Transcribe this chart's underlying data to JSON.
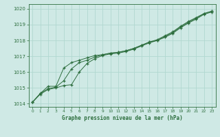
{
  "title": "Graphe pression niveau de la mer (hPa)",
  "background_color": "#cfe9e5",
  "grid_color": "#b0d8d0",
  "line_color": "#2d6e3e",
  "xlim": [
    -0.5,
    23.5
  ],
  "ylim": [
    1013.8,
    1020.3
  ],
  "yticks": [
    1014,
    1015,
    1016,
    1017,
    1018,
    1019,
    1020
  ],
  "xticks": [
    0,
    1,
    2,
    3,
    4,
    5,
    6,
    7,
    8,
    9,
    10,
    11,
    12,
    13,
    14,
    15,
    16,
    17,
    18,
    19,
    20,
    21,
    22,
    23
  ],
  "series1_x": [
    0,
    1,
    2,
    3,
    4,
    5,
    6,
    7,
    8,
    9,
    10,
    11,
    12,
    13,
    14,
    15,
    16,
    17,
    18,
    19,
    20,
    21,
    22,
    23
  ],
  "series1_y": [
    1014.1,
    1014.6,
    1014.9,
    1015.0,
    1015.15,
    1015.2,
    1016.0,
    1016.55,
    1016.85,
    1017.05,
    1017.15,
    1017.2,
    1017.3,
    1017.45,
    1017.65,
    1017.85,
    1018.0,
    1018.2,
    1018.45,
    1018.8,
    1019.1,
    1019.35,
    1019.65,
    1019.8
  ],
  "series2_x": [
    0,
    1,
    2,
    3,
    4,
    5,
    6,
    7,
    8,
    9,
    10,
    11,
    12,
    13,
    14,
    15,
    16,
    17,
    18,
    19,
    20,
    21,
    22,
    23
  ],
  "series2_y": [
    1014.1,
    1014.65,
    1014.95,
    1015.05,
    1015.45,
    1016.2,
    1016.6,
    1016.75,
    1016.95,
    1017.1,
    1017.2,
    1017.25,
    1017.35,
    1017.5,
    1017.7,
    1017.9,
    1018.05,
    1018.3,
    1018.55,
    1018.9,
    1019.2,
    1019.45,
    1019.7,
    1019.85
  ],
  "series3_x": [
    0,
    1,
    2,
    3,
    4,
    5,
    6,
    7,
    8,
    9,
    10,
    11,
    12,
    13,
    14,
    15,
    16,
    17,
    18,
    19,
    20,
    21,
    22,
    23
  ],
  "series3_y": [
    1014.1,
    1014.65,
    1015.1,
    1015.1,
    1016.25,
    1016.6,
    1016.75,
    1016.9,
    1017.05,
    1017.1,
    1017.2,
    1017.25,
    1017.35,
    1017.5,
    1017.7,
    1017.9,
    1018.0,
    1018.25,
    1018.5,
    1018.85,
    1019.15,
    1019.4,
    1019.7,
    1019.85
  ]
}
